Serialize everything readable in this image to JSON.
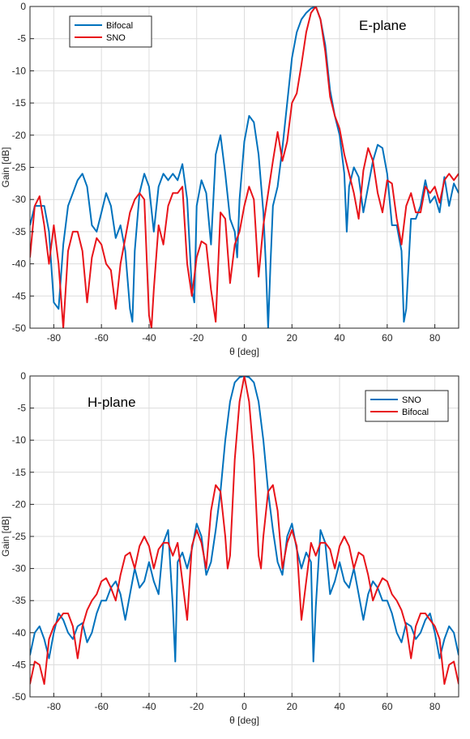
{
  "colors": {
    "blue": "#0072BD",
    "red": "#E8141A"
  },
  "chart_data": [
    {
      "type": "line",
      "title": "",
      "annotation": "E-plane",
      "xlabel": "θ [deg]",
      "ylabel": "Gain [dB]",
      "xlim": [
        -90,
        90
      ],
      "ylim": [
        -50,
        0
      ],
      "xticks": [
        -80,
        -60,
        -40,
        -20,
        0,
        20,
        40,
        60,
        80
      ],
      "yticks": [
        0,
        -5,
        -10,
        -15,
        -20,
        -25,
        -30,
        -35,
        -40,
        -45,
        -50
      ],
      "grid": true,
      "legend_position": "top-left",
      "series": [
        {
          "name": "Bifocal",
          "color": "#0072BD",
          "x": [
            -90,
            -88,
            -86,
            -84,
            -82,
            -80,
            -78,
            -76,
            -74,
            -72,
            -70,
            -68,
            -66,
            -64,
            -62,
            -60,
            -58,
            -56,
            -54,
            -52,
            -50,
            -48,
            -47,
            -46,
            -44,
            -42,
            -40,
            -38,
            -36,
            -34,
            -32,
            -30,
            -28,
            -26,
            -24,
            -22,
            -21,
            -20,
            -18,
            -16,
            -14,
            -12,
            -10,
            -8,
            -6,
            -4,
            -3,
            -2,
            0,
            2,
            4,
            6,
            8,
            9,
            10,
            11,
            12,
            14,
            16,
            18,
            20,
            22,
            24,
            26,
            28,
            30,
            32,
            34,
            36,
            38,
            40,
            42,
            43,
            44,
            46,
            48,
            50,
            52,
            54,
            56,
            58,
            60,
            62,
            64,
            66,
            67,
            68,
            70,
            72,
            74,
            76,
            78,
            80,
            82,
            84,
            86,
            88,
            90
          ],
          "y": [
            -34,
            -31,
            -31,
            -31,
            -35,
            -46,
            -47,
            -37,
            -31,
            -29,
            -27,
            -26,
            -28,
            -34,
            -35,
            -32,
            -29,
            -31,
            -36,
            -34,
            -38,
            -47,
            -49,
            -38,
            -29,
            -26,
            -28,
            -35,
            -28,
            -26,
            -27,
            -26,
            -27,
            -24.5,
            -30,
            -44,
            -46,
            -31,
            -27,
            -29,
            -37,
            -23,
            -20,
            -26,
            -33,
            -35,
            -39,
            -30,
            -21,
            -17,
            -18,
            -23,
            -32,
            -40,
            -50,
            -40,
            -31,
            -28,
            -22,
            -15,
            -8,
            -4,
            -2,
            -1,
            -0.3,
            0,
            -2,
            -6,
            -13,
            -17,
            -20,
            -26,
            -35,
            -28,
            -25,
            -26.5,
            -32,
            -28,
            -24,
            -21.5,
            -22,
            -26,
            -34,
            -34,
            -38,
            -49,
            -47,
            -33,
            -33,
            -31,
            -27,
            -30.5,
            -29.5,
            -32,
            -26.5,
            -31,
            -27.5,
            -29
          ]
        },
        {
          "name": "SNO",
          "color": "#E8141A",
          "x": [
            -90,
            -88,
            -86,
            -84,
            -82,
            -80,
            -78,
            -76,
            -74,
            -72,
            -70,
            -68,
            -66,
            -64,
            -62,
            -60,
            -58,
            -56,
            -54,
            -52,
            -50,
            -48,
            -46,
            -44,
            -42,
            -40,
            -39,
            -38,
            -36,
            -34,
            -32,
            -30,
            -28,
            -26,
            -24,
            -22,
            -20,
            -18,
            -16,
            -14,
            -12,
            -10,
            -8,
            -6,
            -4,
            -2,
            0,
            2,
            4,
            6,
            8,
            10,
            12,
            14,
            16,
            18,
            20,
            22,
            24,
            26,
            28,
            30,
            32,
            34,
            36,
            38,
            40,
            42,
            44,
            46,
            48,
            50,
            52,
            54,
            56,
            58,
            60,
            62,
            64,
            66,
            68,
            70,
            72,
            74,
            76,
            78,
            80,
            82,
            84,
            86,
            88,
            90
          ],
          "y": [
            -39,
            -31,
            -29.5,
            -34,
            -40,
            -34,
            -40,
            -50,
            -38,
            -35,
            -35,
            -38,
            -46,
            -39,
            -36,
            -37,
            -40,
            -41,
            -47,
            -40,
            -36,
            -32,
            -30,
            -29,
            -30,
            -48,
            -50,
            -44,
            -34,
            -37,
            -31,
            -29,
            -29,
            -28,
            -40,
            -45,
            -39,
            -36.5,
            -37,
            -44,
            -49,
            -32,
            -33,
            -43,
            -37,
            -35,
            -31,
            -28,
            -30,
            -42,
            -34,
            -29,
            -24,
            -19.5,
            -24,
            -21,
            -15,
            -13.5,
            -9,
            -4,
            -1,
            0,
            -2,
            -7,
            -14,
            -17,
            -19,
            -23,
            -26,
            -29,
            -33,
            -25.5,
            -22,
            -24,
            -29,
            -32,
            -27,
            -27.5,
            -33,
            -37,
            -31,
            -29,
            -32,
            -32,
            -28,
            -29,
            -28,
            -30.5,
            -27,
            -26,
            -27,
            -26
          ]
        }
      ]
    },
    {
      "type": "line",
      "title": "",
      "annotation": "H-plane",
      "xlabel": "θ [deg]",
      "ylabel": "Gain [dB]",
      "xlim": [
        -90,
        90
      ],
      "ylim": [
        -50,
        0
      ],
      "xticks": [
        -80,
        -60,
        -40,
        -20,
        0,
        20,
        40,
        60,
        80
      ],
      "yticks": [
        0,
        -5,
        -10,
        -15,
        -20,
        -25,
        -30,
        -35,
        -40,
        -45,
        -50
      ],
      "grid": true,
      "legend_position": "top-right",
      "series": [
        {
          "name": "SNO",
          "color": "#0072BD",
          "x": [
            -90,
            -88,
            -86,
            -84,
            -82,
            -80,
            -78,
            -76,
            -74,
            -72,
            -70,
            -68,
            -66,
            -64,
            -62,
            -60,
            -58,
            -56,
            -54,
            -52,
            -50,
            -48,
            -46,
            -44,
            -42,
            -40,
            -38,
            -36,
            -34,
            -32,
            -30,
            -29,
            -28,
            -26,
            -24,
            -22,
            -20,
            -18,
            -16,
            -14,
            -12,
            -10,
            -8,
            -6,
            -4,
            -2,
            0,
            2,
            4,
            6,
            8,
            10,
            12,
            14,
            16,
            18,
            20,
            22,
            24,
            26,
            28,
            29,
            30,
            32,
            34,
            36,
            38,
            40,
            42,
            44,
            46,
            48,
            50,
            52,
            54,
            56,
            58,
            60,
            62,
            64,
            66,
            68,
            70,
            72,
            74,
            76,
            78,
            80,
            82,
            84,
            86,
            88,
            90
          ],
          "y": [
            -43.5,
            -40,
            -39,
            -41,
            -44,
            -40,
            -37,
            -38,
            -40,
            -41,
            -39,
            -38.5,
            -41.5,
            -40,
            -37,
            -35,
            -35,
            -33,
            -32,
            -34,
            -38,
            -34,
            -30,
            -33,
            -32,
            -29,
            -32,
            -34,
            -26,
            -24,
            -36,
            -44.5,
            -29,
            -27.5,
            -30,
            -27,
            -23,
            -25,
            -31,
            -29,
            -24,
            -18,
            -10,
            -4,
            -1,
            -0.2,
            0,
            -0.2,
            -1,
            -4,
            -10,
            -18,
            -24,
            -29,
            -31,
            -25,
            -23,
            -27,
            -30,
            -27.5,
            -29,
            -44.5,
            -36,
            -24,
            -26,
            -34,
            -32,
            -29,
            -32,
            -33,
            -30,
            -34,
            -38,
            -34,
            -32,
            -33,
            -35,
            -35,
            -37,
            -40,
            -41.5,
            -38.5,
            -39,
            -41,
            -40,
            -38,
            -37,
            -40,
            -44,
            -41,
            -39,
            -40,
            -43.5
          ]
        },
        {
          "name": "Bifocal",
          "color": "#E8141A",
          "x": [
            -90,
            -88,
            -86,
            -84,
            -82,
            -80,
            -78,
            -76,
            -74,
            -72,
            -70,
            -68,
            -66,
            -64,
            -62,
            -60,
            -58,
            -56,
            -54,
            -52,
            -50,
            -48,
            -46,
            -44,
            -42,
            -40,
            -38,
            -36,
            -34,
            -32,
            -30,
            -28,
            -26,
            -24,
            -22,
            -20,
            -18,
            -16,
            -14,
            -12,
            -10,
            -8,
            -7,
            -6,
            -4,
            -2,
            0,
            2,
            4,
            6,
            7,
            8,
            10,
            12,
            14,
            16,
            18,
            20,
            22,
            24,
            26,
            28,
            30,
            32,
            34,
            36,
            38,
            40,
            42,
            44,
            46,
            48,
            50,
            52,
            54,
            56,
            58,
            60,
            62,
            64,
            66,
            68,
            70,
            72,
            74,
            76,
            78,
            80,
            82,
            84,
            86,
            88,
            90
          ],
          "y": [
            -48,
            -44.5,
            -45,
            -48,
            -41,
            -39,
            -38,
            -37,
            -37,
            -39,
            -44,
            -39,
            -36.5,
            -35,
            -34,
            -32,
            -31.5,
            -33,
            -35,
            -31,
            -28,
            -27.5,
            -30,
            -26.5,
            -25,
            -26.5,
            -30,
            -27,
            -26,
            -26,
            -28,
            -26,
            -32,
            -38,
            -26.5,
            -24,
            -26,
            -30,
            -21,
            -17,
            -18,
            -25,
            -30,
            -28,
            -13,
            -4,
            0,
            -4,
            -13,
            -28,
            -30,
            -25,
            -18,
            -17,
            -21,
            -30,
            -26,
            -24,
            -26.5,
            -38,
            -32,
            -26,
            -28,
            -26,
            -26,
            -27,
            -30,
            -26.5,
            -25,
            -26.5,
            -30,
            -27.5,
            -28,
            -31,
            -35,
            -33,
            -31.5,
            -32,
            -34,
            -35,
            -36.5,
            -39,
            -44,
            -39,
            -37,
            -37,
            -38,
            -39,
            -41,
            -48,
            -45,
            -44.5,
            -48
          ]
        }
      ]
    }
  ]
}
